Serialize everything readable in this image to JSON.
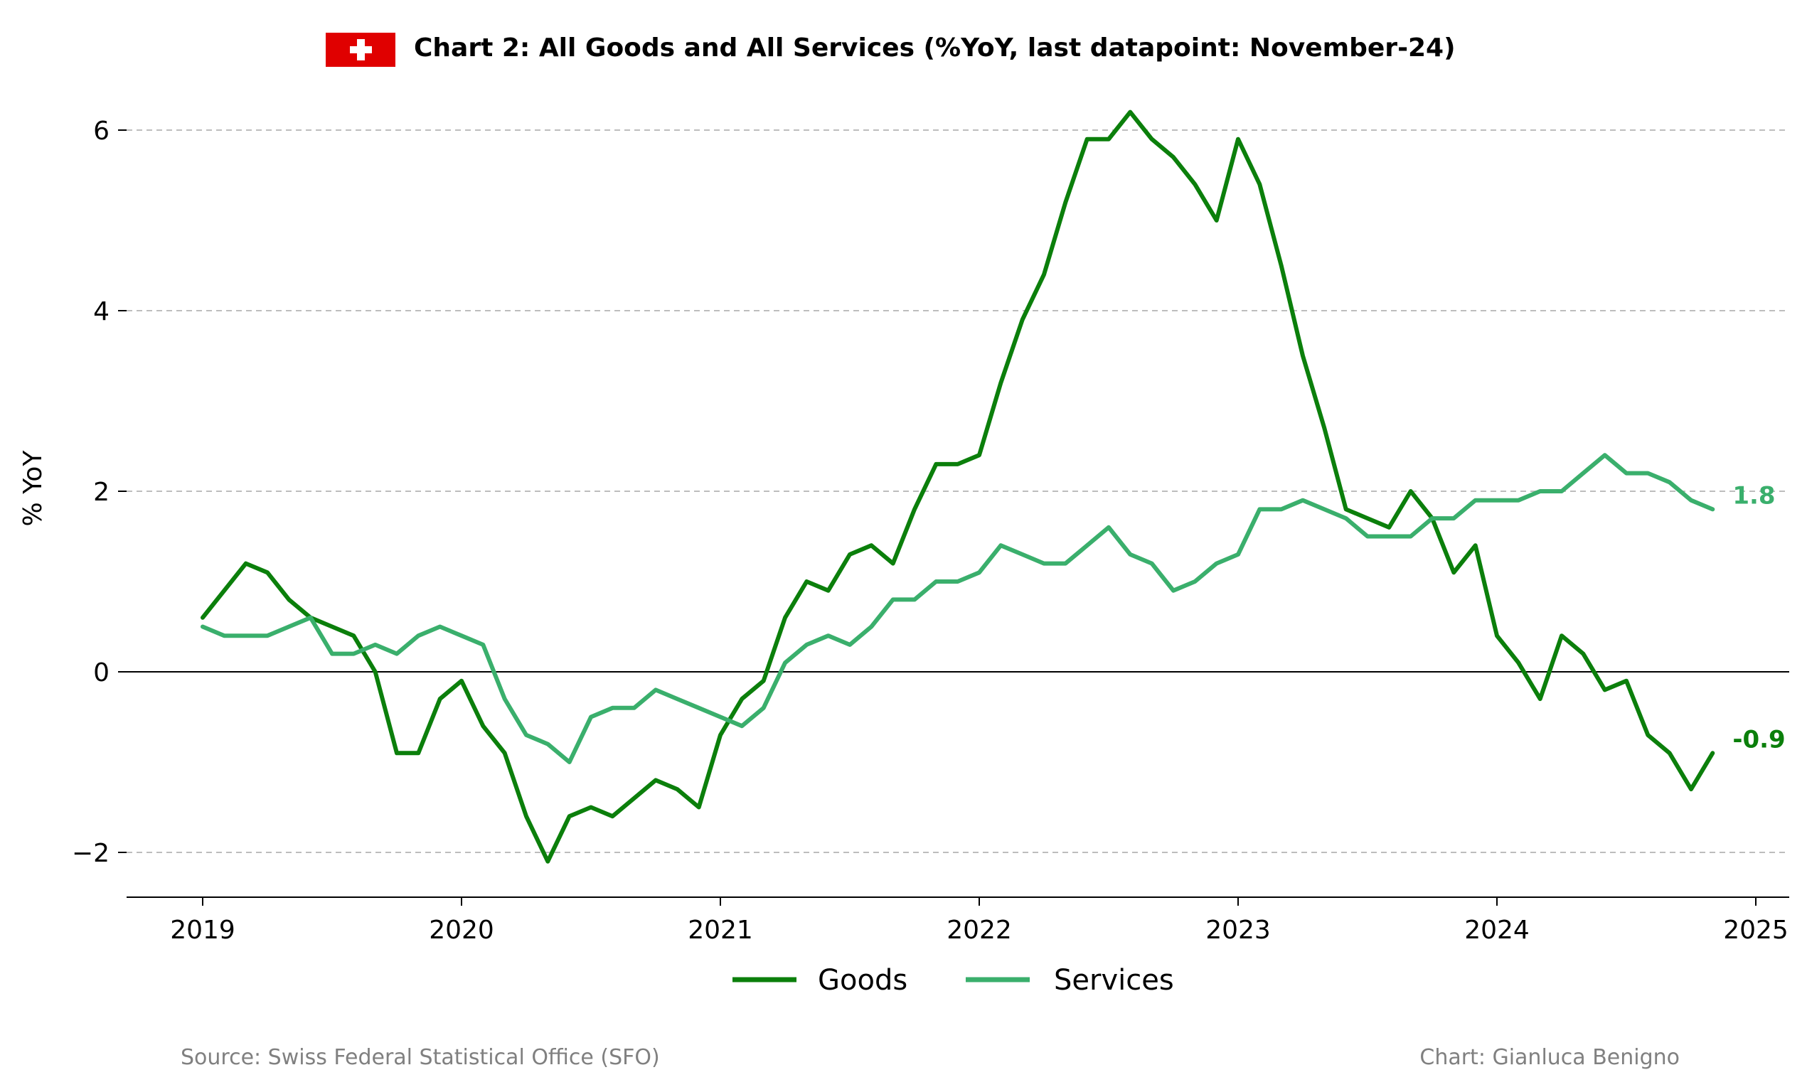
{
  "colors": {
    "goods": "#0b7f0b",
    "services": "#3aaf6c",
    "flag_red": "#e00000",
    "grid": "#bdbdbd"
  },
  "header": {
    "flag_icon": "swiss-flag-icon",
    "title": "Chart 2: All Goods and All Services (%YoY, last datapoint: November-24)"
  },
  "footer": {
    "source": "Source: Swiss Federal Statistical Office (SFO)",
    "credit": "Chart: Gianluca Benigno"
  },
  "chart_data": {
    "type": "line",
    "title": "Chart 2: All Goods and All Services (%YoY, last datapoint: November-24)",
    "xlabel": "",
    "ylabel": "% YoY",
    "x_start": "2019-01",
    "x_frequency": "monthly",
    "xlim": [
      "2018-09",
      "2025-02"
    ],
    "ylim": [
      -2.5,
      6.5
    ],
    "x_ticks": [
      "2019",
      "2020",
      "2021",
      "2022",
      "2023",
      "2024",
      "2025"
    ],
    "y_ticks": [
      -2,
      0,
      2,
      4,
      6
    ],
    "y_tick_labels": [
      "−2",
      "0",
      "2",
      "4",
      "6"
    ],
    "grid": "horizontal dashed",
    "zero_line": true,
    "legend": "bottom-center",
    "series": [
      {
        "name": "Goods",
        "end_label": "-0.9",
        "values": [
          0.6,
          0.9,
          1.2,
          1.1,
          0.8,
          0.6,
          0.5,
          0.4,
          0.0,
          -0.9,
          -0.9,
          -0.3,
          -0.1,
          -0.6,
          -0.9,
          -1.6,
          -2.1,
          -1.6,
          -1.5,
          -1.6,
          -1.4,
          -1.2,
          -1.3,
          -1.5,
          -0.7,
          -0.3,
          -0.1,
          0.6,
          1.0,
          0.9,
          1.3,
          1.4,
          1.2,
          1.8,
          2.3,
          2.3,
          2.4,
          3.2,
          3.9,
          4.4,
          5.2,
          5.9,
          5.9,
          6.2,
          5.9,
          5.7,
          5.4,
          5.0,
          5.9,
          5.4,
          4.5,
          3.5,
          2.7,
          1.8,
          1.7,
          1.6,
          2.0,
          1.7,
          1.1,
          1.4,
          0.4,
          0.1,
          -0.3,
          0.4,
          0.2,
          -0.2,
          -0.1,
          -0.7,
          -0.9,
          -1.3,
          -0.9
        ]
      },
      {
        "name": "Services",
        "end_label": "1.8",
        "values": [
          0.5,
          0.4,
          0.4,
          0.4,
          0.5,
          0.6,
          0.2,
          0.2,
          0.3,
          0.2,
          0.4,
          0.5,
          0.4,
          0.3,
          -0.3,
          -0.7,
          -0.8,
          -1.0,
          -0.5,
          -0.4,
          -0.4,
          -0.2,
          -0.3,
          -0.4,
          -0.5,
          -0.6,
          -0.4,
          0.1,
          0.3,
          0.4,
          0.3,
          0.5,
          0.8,
          0.8,
          1.0,
          1.0,
          1.1,
          1.4,
          1.3,
          1.2,
          1.2,
          1.4,
          1.6,
          1.3,
          1.2,
          0.9,
          1.0,
          1.2,
          1.3,
          1.8,
          1.8,
          1.9,
          1.8,
          1.7,
          1.5,
          1.5,
          1.5,
          1.7,
          1.7,
          1.9,
          1.9,
          1.9,
          2.0,
          2.0,
          2.2,
          2.4,
          2.2,
          2.2,
          2.1,
          1.9,
          1.8
        ]
      }
    ]
  }
}
